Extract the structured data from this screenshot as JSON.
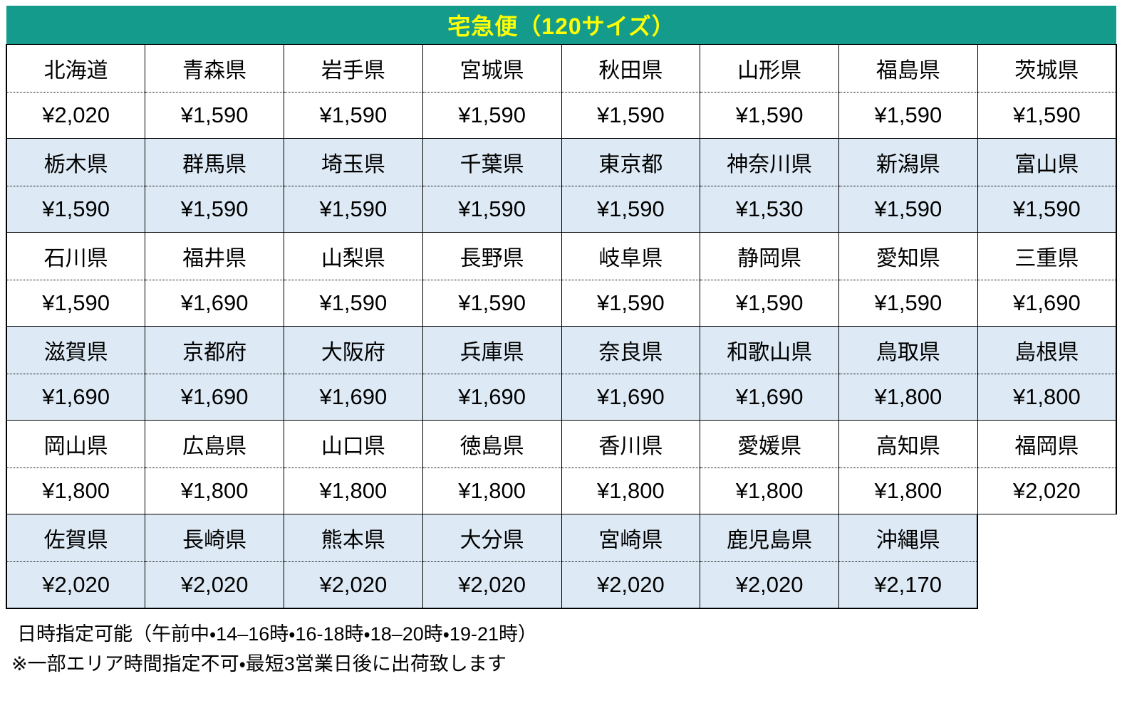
{
  "header": {
    "title": "宅急便（120サイズ）"
  },
  "colors": {
    "header_bg": "#149B8C",
    "header_text": "#FFFF00",
    "shaded_band_bg": "#DDE9F4",
    "border": "#000000"
  },
  "table": {
    "bands": [
      {
        "shaded": false,
        "cells": [
          {
            "name": "北海道",
            "price": "¥2,020"
          },
          {
            "name": "青森県",
            "price": "¥1,590"
          },
          {
            "name": "岩手県",
            "price": "¥1,590"
          },
          {
            "name": "宮城県",
            "price": "¥1,590"
          },
          {
            "name": "秋田県",
            "price": "¥1,590"
          },
          {
            "name": "山形県",
            "price": "¥1,590"
          },
          {
            "name": "福島県",
            "price": "¥1,590"
          },
          {
            "name": "茨城県",
            "price": "¥1,590"
          }
        ]
      },
      {
        "shaded": true,
        "cells": [
          {
            "name": "栃木県",
            "price": "¥1,590"
          },
          {
            "name": "群馬県",
            "price": "¥1,590"
          },
          {
            "name": "埼玉県",
            "price": "¥1,590"
          },
          {
            "name": "千葉県",
            "price": "¥1,590"
          },
          {
            "name": "東京都",
            "price": "¥1,590"
          },
          {
            "name": "神奈川県",
            "price": "¥1,530"
          },
          {
            "name": "新潟県",
            "price": "¥1,590"
          },
          {
            "name": "富山県",
            "price": "¥1,590"
          }
        ]
      },
      {
        "shaded": false,
        "cells": [
          {
            "name": "石川県",
            "price": "¥1,590"
          },
          {
            "name": "福井県",
            "price": "¥1,690"
          },
          {
            "name": "山梨県",
            "price": "¥1,590"
          },
          {
            "name": "長野県",
            "price": "¥1,590"
          },
          {
            "name": "岐阜県",
            "price": "¥1,590"
          },
          {
            "name": "静岡県",
            "price": "¥1,590"
          },
          {
            "name": "愛知県",
            "price": "¥1,590"
          },
          {
            "name": "三重県",
            "price": "¥1,690"
          }
        ]
      },
      {
        "shaded": true,
        "cells": [
          {
            "name": "滋賀県",
            "price": "¥1,690"
          },
          {
            "name": "京都府",
            "price": "¥1,690"
          },
          {
            "name": "大阪府",
            "price": "¥1,690"
          },
          {
            "name": "兵庫県",
            "price": "¥1,690"
          },
          {
            "name": "奈良県",
            "price": "¥1,690"
          },
          {
            "name": "和歌山県",
            "price": "¥1,690"
          },
          {
            "name": "鳥取県",
            "price": "¥1,800"
          },
          {
            "name": "島根県",
            "price": "¥1,800"
          }
        ]
      },
      {
        "shaded": false,
        "cells": [
          {
            "name": "岡山県",
            "price": "¥1,800"
          },
          {
            "name": "広島県",
            "price": "¥1,800"
          },
          {
            "name": "山口県",
            "price": "¥1,800"
          },
          {
            "name": "徳島県",
            "price": "¥1,800"
          },
          {
            "name": "香川県",
            "price": "¥1,800"
          },
          {
            "name": "愛媛県",
            "price": "¥1,800"
          },
          {
            "name": "高知県",
            "price": "¥1,800"
          },
          {
            "name": "福岡県",
            "price": "¥2,020"
          }
        ]
      },
      {
        "shaded": true,
        "cells": [
          {
            "name": "佐賀県",
            "price": "¥2,020"
          },
          {
            "name": "長崎県",
            "price": "¥2,020"
          },
          {
            "name": "熊本県",
            "price": "¥2,020"
          },
          {
            "name": "大分県",
            "price": "¥2,020"
          },
          {
            "name": "宮崎県",
            "price": "¥2,020"
          },
          {
            "name": "鹿児島県",
            "price": "¥2,020"
          },
          {
            "name": "沖縄県",
            "price": "¥2,170"
          }
        ]
      }
    ]
  },
  "notes": {
    "line1": "日時指定可能（午前中・14–16時・16-18時・18–20時・19-21時）",
    "line2": "※一部エリア時間指定不可・最短3営業日後に出荷致します"
  }
}
